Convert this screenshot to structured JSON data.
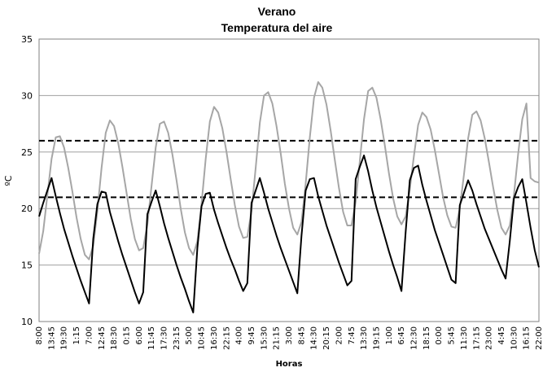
{
  "chart_data": {
    "type": "line",
    "title": "Verano",
    "subtitle": "Temperatura del aire",
    "y_label": "ºC",
    "x_label": "Horas",
    "ylim": [
      10,
      35
    ],
    "yticks": [
      10,
      15,
      20,
      25,
      30,
      35
    ],
    "grid": true,
    "thresholds": [
      26,
      21
    ],
    "threshold_color": "#000000",
    "categories": [
      "8:00",
      null,
      null,
      "13:45",
      null,
      null,
      "19:30",
      null,
      null,
      "1:15",
      null,
      null,
      "7:00",
      null,
      null,
      "12:45",
      null,
      null,
      "18:30",
      null,
      null,
      "0:15",
      null,
      null,
      "6:00",
      null,
      null,
      "11:45",
      null,
      null,
      "17:30",
      null,
      null,
      "23:15",
      null,
      null,
      "5:00",
      null,
      null,
      "10:45",
      null,
      null,
      "16:30",
      null,
      null,
      "22:15",
      null,
      null,
      "4:00",
      null,
      null,
      "9:45",
      null,
      null,
      "15:30",
      null,
      null,
      "21:15",
      null,
      null,
      "3:00",
      null,
      null,
      "8:45",
      null,
      null,
      "14:30",
      null,
      null,
      "20:15",
      null,
      null,
      "2:00",
      null,
      null,
      "7:45",
      null,
      null,
      "13:30",
      null,
      null,
      "19:15",
      null,
      null,
      "1:00",
      null,
      null,
      "6:45",
      null,
      null,
      "12:30",
      null,
      null,
      "18:15",
      null,
      null,
      "0:00",
      null,
      null,
      "5:45",
      null,
      null,
      "11:30",
      null,
      null,
      "17:15",
      null,
      null,
      "23:00",
      null,
      null,
      "4:45",
      null,
      null,
      "10:30",
      null,
      null,
      "16:15",
      null,
      null,
      "22:00"
    ],
    "series": [
      {
        "color": "#a6a6a6",
        "values": [
          16.0,
          18.0,
          21.2,
          24.4,
          26.3,
          26.4,
          25.4,
          23.6,
          21.5,
          19.2,
          17.3,
          15.9,
          15.5,
          16.7,
          19.8,
          23.6,
          26.7,
          27.8,
          27.3,
          25.8,
          23.7,
          21.4,
          19.1,
          17.3,
          16.3,
          16.5,
          18.6,
          22.0,
          25.4,
          27.5,
          27.7,
          26.7,
          24.8,
          22.5,
          20.0,
          17.9,
          16.5,
          15.9,
          17.1,
          20.4,
          24.4,
          27.7,
          29.0,
          28.5,
          27.1,
          25.0,
          22.6,
          20.3,
          18.4,
          17.4,
          17.5,
          19.8,
          23.6,
          27.6,
          30.0,
          30.3,
          29.3,
          27.3,
          24.9,
          22.2,
          20.0,
          18.3,
          17.7,
          18.8,
          22.2,
          26.3,
          29.8,
          31.2,
          30.7,
          29.2,
          26.9,
          24.3,
          21.8,
          19.7,
          18.5,
          18.5,
          20.6,
          24.2,
          27.9,
          30.4,
          30.7,
          29.8,
          27.9,
          25.6,
          23.1,
          20.9,
          19.3,
          18.6,
          19.3,
          21.7,
          24.7,
          27.4,
          28.5,
          28.1,
          27.0,
          25.2,
          23.1,
          21.0,
          19.4,
          18.4,
          18.3,
          20.0,
          23.0,
          26.2,
          28.3,
          28.6,
          27.8,
          26.2,
          24.1,
          21.9,
          19.9,
          18.3,
          17.7,
          18.5,
          21.2,
          24.8,
          27.9,
          29.3,
          22.7,
          22.4,
          22.3
        ]
      },
      {
        "color": "#000000",
        "values": [
          19.3,
          20.5,
          21.6,
          22.7,
          21.1,
          19.6,
          18.2,
          17.0,
          15.8,
          14.7,
          13.6,
          12.6,
          11.6,
          17.3,
          20.4,
          21.5,
          21.4,
          19.7,
          18.4,
          17.1,
          15.9,
          14.8,
          13.7,
          12.6,
          11.6,
          12.6,
          19.5,
          20.6,
          21.6,
          20.2,
          18.7,
          17.4,
          16.2,
          15.0,
          13.9,
          12.9,
          11.8,
          10.8,
          16.5,
          20.2,
          21.3,
          21.4,
          19.9,
          18.7,
          17.6,
          16.5,
          15.5,
          14.6,
          13.6,
          12.7,
          13.4,
          20.5,
          21.6,
          22.7,
          21.4,
          20.0,
          18.8,
          17.6,
          16.5,
          15.5,
          14.5,
          13.5,
          12.5,
          17.6,
          21.6,
          22.6,
          22.7,
          21.1,
          19.8,
          18.5,
          17.4,
          16.3,
          15.2,
          14.2,
          13.2,
          13.6,
          22.6,
          23.7,
          24.7,
          23.3,
          21.6,
          20.1,
          18.8,
          17.5,
          16.2,
          15.0,
          13.9,
          12.7,
          17.9,
          22.5,
          23.6,
          23.8,
          22.1,
          20.7,
          19.4,
          18.1,
          17.0,
          15.9,
          14.8,
          13.7,
          13.4,
          20.3,
          21.4,
          22.5,
          21.6,
          20.4,
          19.3,
          18.2,
          17.3,
          16.4,
          15.5,
          14.6,
          13.8,
          17.1,
          20.9,
          21.9,
          22.6,
          20.5,
          18.3,
          16.3,
          14.8
        ]
      }
    ]
  }
}
